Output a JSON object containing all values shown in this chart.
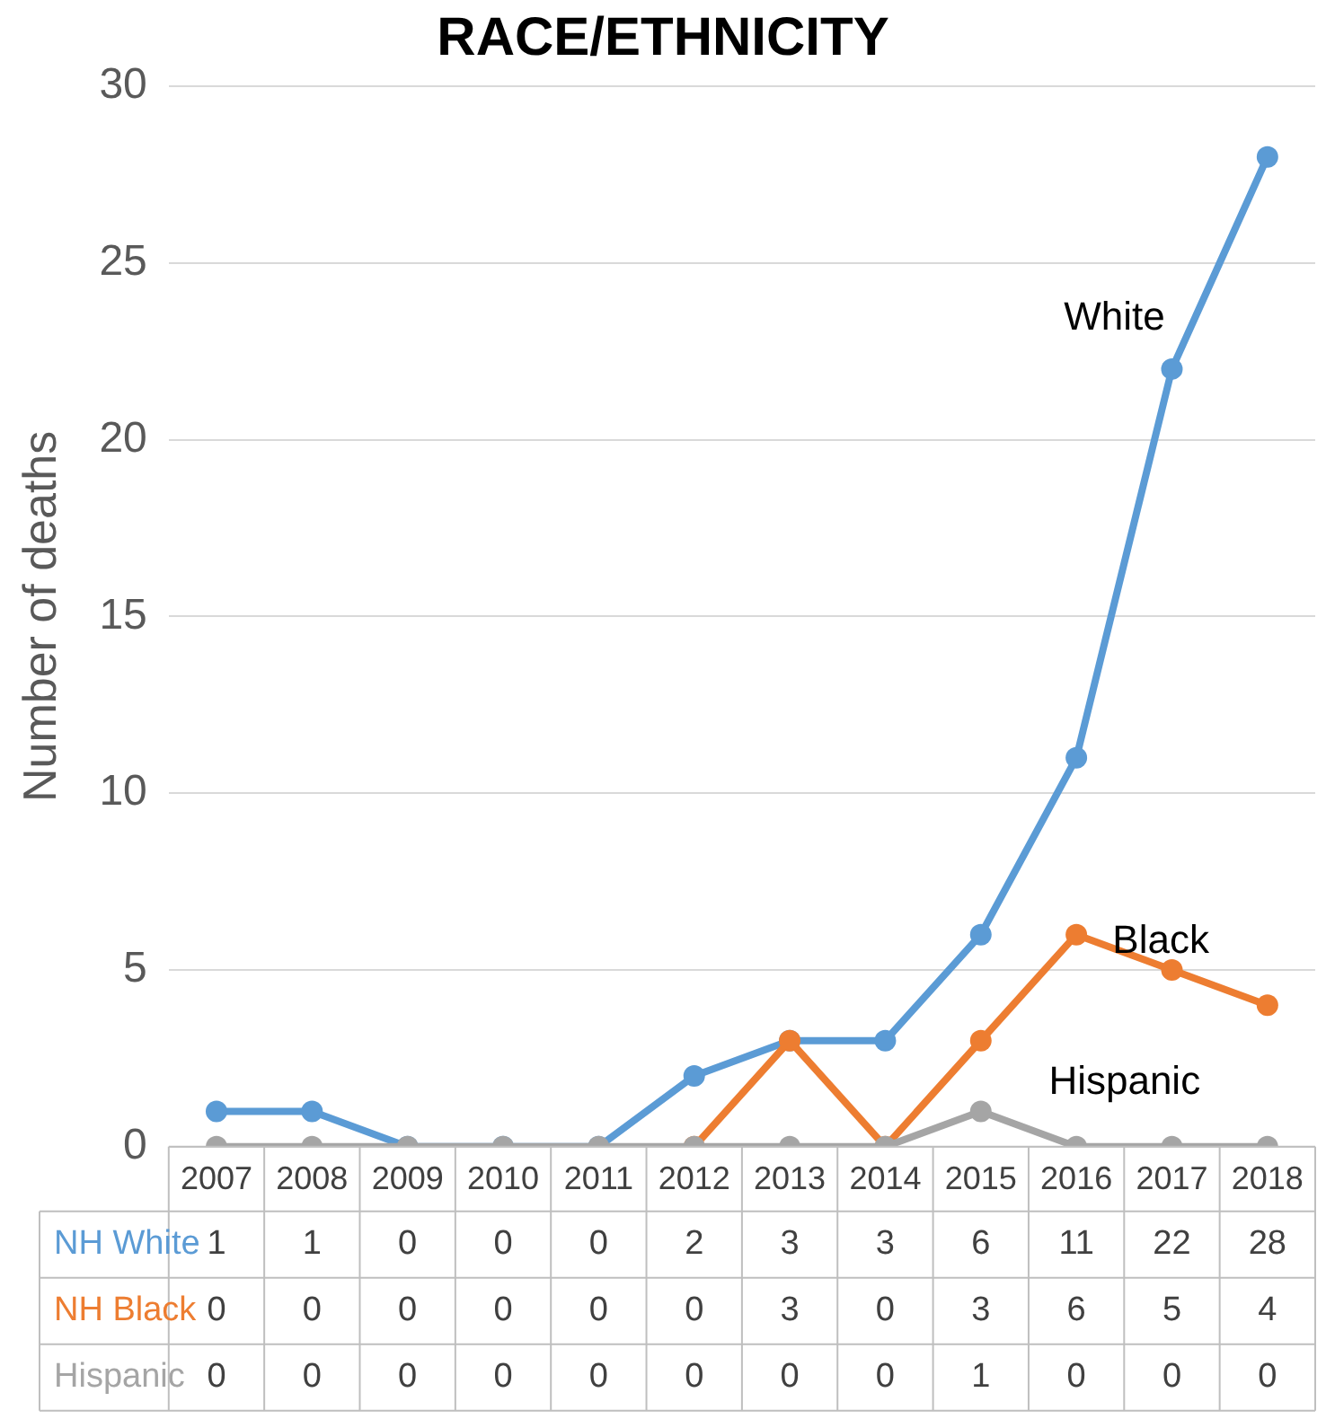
{
  "chart_data": {
    "type": "line",
    "title": "RACE/ETHNICITY",
    "ylabel": "Number of deaths",
    "categories": [
      "2007",
      "2008",
      "2009",
      "2010",
      "2011",
      "2012",
      "2013",
      "2014",
      "2015",
      "2016",
      "2017",
      "2018"
    ],
    "series": [
      {
        "name": "NH White",
        "color": "#5b9bd5",
        "values": [
          1,
          1,
          0,
          0,
          0,
          2,
          3,
          3,
          6,
          11,
          22,
          28
        ]
      },
      {
        "name": "NH Black",
        "color": "#ed7d31",
        "values": [
          null,
          null,
          null,
          null,
          null,
          0,
          3,
          0,
          3,
          6,
          5,
          4
        ],
        "value_labels": [
          "0",
          "0",
          "0",
          "0",
          "0",
          "0",
          "3",
          "0",
          "3",
          "6",
          "5",
          "4"
        ]
      },
      {
        "name": "Hispanic",
        "color": "#a5a5a5",
        "values": [
          0,
          0,
          0,
          0,
          0,
          0,
          0,
          0,
          1,
          0,
          0,
          0
        ]
      }
    ],
    "ylim": [
      0,
      30
    ],
    "yticks": [
      0,
      5,
      10,
      15,
      20,
      25,
      30
    ],
    "grid": "y",
    "legend": false,
    "marker": "circle",
    "line_style": "solid",
    "data_labels": true,
    "annotations": [
      {
        "text": "White",
        "x": "2017",
        "y": 22
      },
      {
        "text": "Black",
        "x": "2016",
        "y": 6
      },
      {
        "text": "Hispanic",
        "x": "2015",
        "y": 1
      }
    ]
  }
}
